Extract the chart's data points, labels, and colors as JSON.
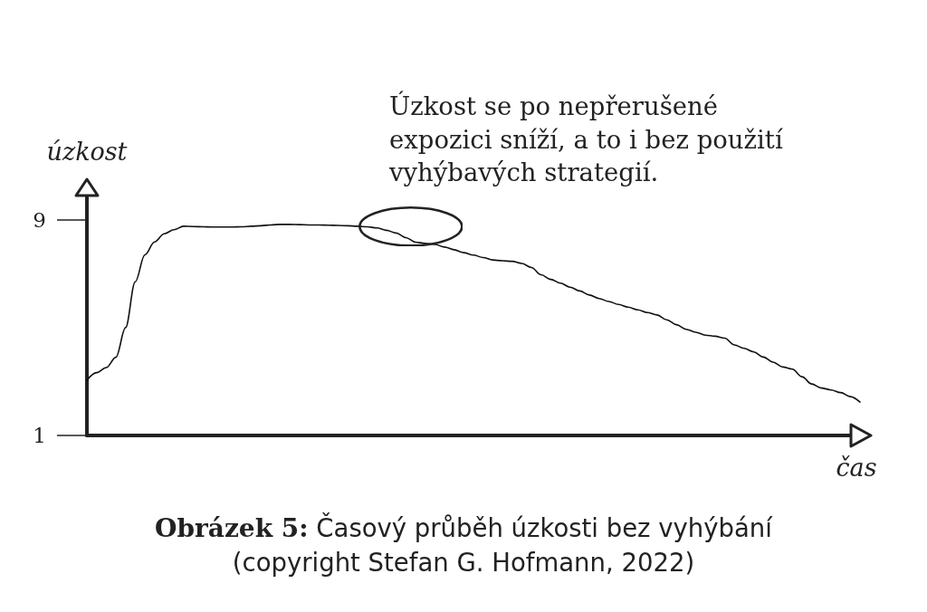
{
  "chart_data": {
    "type": "line",
    "title": "Obrázek 5: Časový průběh úzkosti bez vyhýbání",
    "subtitle": "(copyright Stefan G. Hofmann, 2022)",
    "xlabel": "čas",
    "ylabel": "úzkost",
    "annotations": [
      "Úzkost se po nepřerušené expozici sníží, a to i bez použití vyhýbavých strategií."
    ],
    "categories": [
      null,
      null,
      null,
      null,
      null,
      null,
      null,
      null,
      null,
      null,
      null,
      null,
      null,
      null,
      null,
      null,
      null,
      null,
      null,
      null,
      null,
      null,
      null,
      null,
      null,
      null,
      null,
      null,
      null,
      null,
      null,
      null,
      null,
      null,
      null,
      null,
      null,
      null,
      null,
      null,
      null,
      null,
      null,
      null,
      null,
      null,
      null,
      null,
      null,
      null,
      null,
      null,
      null,
      null,
      null,
      null,
      null,
      null,
      null,
      null,
      null,
      null,
      null,
      null,
      null,
      null,
      null,
      null,
      null,
      null,
      null,
      null,
      null,
      null,
      null,
      null,
      null,
      null,
      null,
      null,
      null
    ],
    "values": [
      3.05,
      3.33,
      3.52,
      3.9,
      5.0,
      6.7,
      7.7,
      8.18,
      8.48,
      8.63,
      8.76,
      8.75,
      8.74,
      8.73,
      8.73,
      8.73,
      8.74,
      8.76,
      8.78,
      8.81,
      8.83,
      8.83,
      8.82,
      8.81,
      8.81,
      8.8,
      8.79,
      8.78,
      8.76,
      8.74,
      8.7,
      8.61,
      8.51,
      8.34,
      8.17,
      8.13,
      8.09,
      7.99,
      7.89,
      7.78,
      7.69,
      7.6,
      7.51,
      7.48,
      7.46,
      7.38,
      7.23,
      6.96,
      6.79,
      6.65,
      6.5,
      6.36,
      6.21,
      6.08,
      5.97,
      5.86,
      5.76,
      5.66,
      5.56,
      5.47,
      5.29,
      5.11,
      4.94,
      4.83,
      4.72,
      4.68,
      4.61,
      4.36,
      4.23,
      4.1,
      3.91,
      3.72,
      3.54,
      3.46,
      3.18,
      2.91,
      2.76,
      2.69,
      2.59,
      2.44,
      2.24
    ],
    "color": "#111111",
    "ylim": [
      1,
      10
    ],
    "yticks": [
      1,
      9
    ],
    "tick_labels": "y",
    "marker": "none",
    "line_style": "solid"
  }
}
